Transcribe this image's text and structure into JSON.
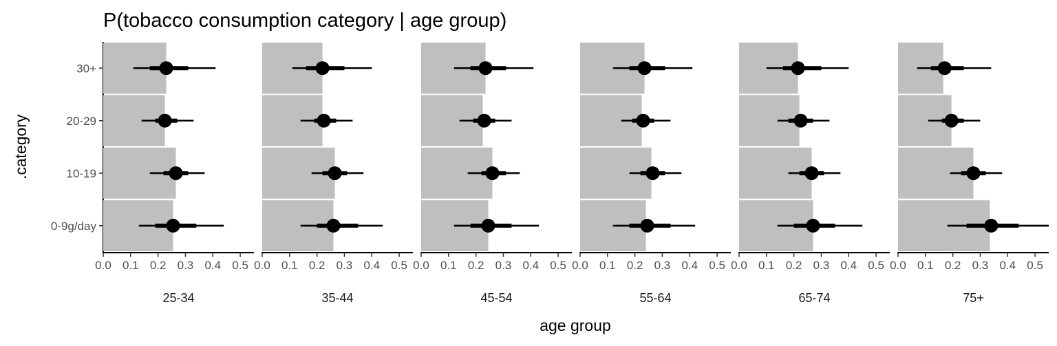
{
  "chart_data": {
    "type": "interval-bar",
    "title": "P(tobacco consumption category | age group)",
    "xlabel": "age group",
    "ylabel": ".category",
    "categories": [
      "30+",
      "20-29",
      "10-19",
      "0-9g/day"
    ],
    "xlim": [
      0,
      0.55
    ],
    "xticks": [
      0.0,
      0.1,
      0.2,
      0.3,
      0.4,
      0.5
    ],
    "xtick_labels": [
      "0.0",
      "0.1",
      "0.2",
      "0.3",
      "0.4",
      "0.5"
    ],
    "bar_color": "#bfbfbf",
    "point_color": "#000000",
    "grid": false,
    "panels": [
      {
        "label": "25-34",
        "bars": [
          0.23,
          0.225,
          0.265,
          0.255
        ],
        "points": [
          {
            "category": "30+",
            "median": 0.23,
            "inner": [
              0.17,
              0.31
            ],
            "outer": [
              0.11,
              0.41
            ]
          },
          {
            "category": "20-29",
            "median": 0.225,
            "inner": [
              0.19,
              0.27
            ],
            "outer": [
              0.14,
              0.33
            ]
          },
          {
            "category": "10-19",
            "median": 0.265,
            "inner": [
              0.22,
              0.31
            ],
            "outer": [
              0.17,
              0.37
            ]
          },
          {
            "category": "0-9g/day",
            "median": 0.255,
            "inner": [
              0.19,
              0.34
            ],
            "outer": [
              0.13,
              0.44
            ]
          }
        ]
      },
      {
        "label": "35-44",
        "bars": [
          0.22,
          0.22,
          0.265,
          0.26
        ],
        "points": [
          {
            "category": "30+",
            "median": 0.22,
            "inner": [
              0.16,
              0.3
            ],
            "outer": [
              0.11,
              0.4
            ]
          },
          {
            "category": "20-29",
            "median": 0.225,
            "inner": [
              0.19,
              0.27
            ],
            "outer": [
              0.14,
              0.33
            ]
          },
          {
            "category": "10-19",
            "median": 0.265,
            "inner": [
              0.22,
              0.31
            ],
            "outer": [
              0.18,
              0.37
            ]
          },
          {
            "category": "0-9g/day",
            "median": 0.26,
            "inner": [
              0.2,
              0.35
            ],
            "outer": [
              0.14,
              0.44
            ]
          }
        ]
      },
      {
        "label": "45-54",
        "bars": [
          0.235,
          0.225,
          0.26,
          0.245
        ],
        "points": [
          {
            "category": "30+",
            "median": 0.235,
            "inner": [
              0.18,
              0.31
            ],
            "outer": [
              0.12,
              0.41
            ]
          },
          {
            "category": "20-29",
            "median": 0.23,
            "inner": [
              0.19,
              0.27
            ],
            "outer": [
              0.14,
              0.33
            ]
          },
          {
            "category": "10-19",
            "median": 0.26,
            "inner": [
              0.22,
              0.31
            ],
            "outer": [
              0.17,
              0.36
            ]
          },
          {
            "category": "0-9g/day",
            "median": 0.245,
            "inner": [
              0.18,
              0.33
            ],
            "outer": [
              0.12,
              0.43
            ]
          }
        ]
      },
      {
        "label": "55-64",
        "bars": [
          0.235,
          0.225,
          0.26,
          0.24
        ],
        "points": [
          {
            "category": "30+",
            "median": 0.235,
            "inner": [
              0.18,
              0.31
            ],
            "outer": [
              0.12,
              0.41
            ]
          },
          {
            "category": "20-29",
            "median": 0.23,
            "inner": [
              0.19,
              0.27
            ],
            "outer": [
              0.15,
              0.33
            ]
          },
          {
            "category": "10-19",
            "median": 0.265,
            "inner": [
              0.22,
              0.31
            ],
            "outer": [
              0.18,
              0.37
            ]
          },
          {
            "category": "0-9g/day",
            "median": 0.245,
            "inner": [
              0.18,
              0.33
            ],
            "outer": [
              0.12,
              0.42
            ]
          }
        ]
      },
      {
        "label": "65-74",
        "bars": [
          0.215,
          0.22,
          0.265,
          0.27
        ],
        "points": [
          {
            "category": "30+",
            "median": 0.215,
            "inner": [
              0.16,
              0.3
            ],
            "outer": [
              0.1,
              0.4
            ]
          },
          {
            "category": "20-29",
            "median": 0.225,
            "inner": [
              0.18,
              0.27
            ],
            "outer": [
              0.14,
              0.33
            ]
          },
          {
            "category": "10-19",
            "median": 0.265,
            "inner": [
              0.22,
              0.31
            ],
            "outer": [
              0.18,
              0.37
            ]
          },
          {
            "category": "0-9g/day",
            "median": 0.27,
            "inner": [
              0.2,
              0.35
            ],
            "outer": [
              0.14,
              0.45
            ]
          }
        ]
      },
      {
        "label": "75+",
        "bars": [
          0.165,
          0.195,
          0.275,
          0.335
        ],
        "points": [
          {
            "category": "30+",
            "median": 0.17,
            "inner": [
              0.12,
              0.24
            ],
            "outer": [
              0.07,
              0.34
            ]
          },
          {
            "category": "20-29",
            "median": 0.195,
            "inner": [
              0.16,
              0.24
            ],
            "outer": [
              0.11,
              0.3
            ]
          },
          {
            "category": "10-19",
            "median": 0.275,
            "inner": [
              0.23,
              0.32
            ],
            "outer": [
              0.19,
              0.38
            ]
          },
          {
            "category": "0-9g/day",
            "median": 0.34,
            "inner": [
              0.25,
              0.44
            ],
            "outer": [
              0.18,
              0.55
            ]
          }
        ]
      }
    ]
  }
}
